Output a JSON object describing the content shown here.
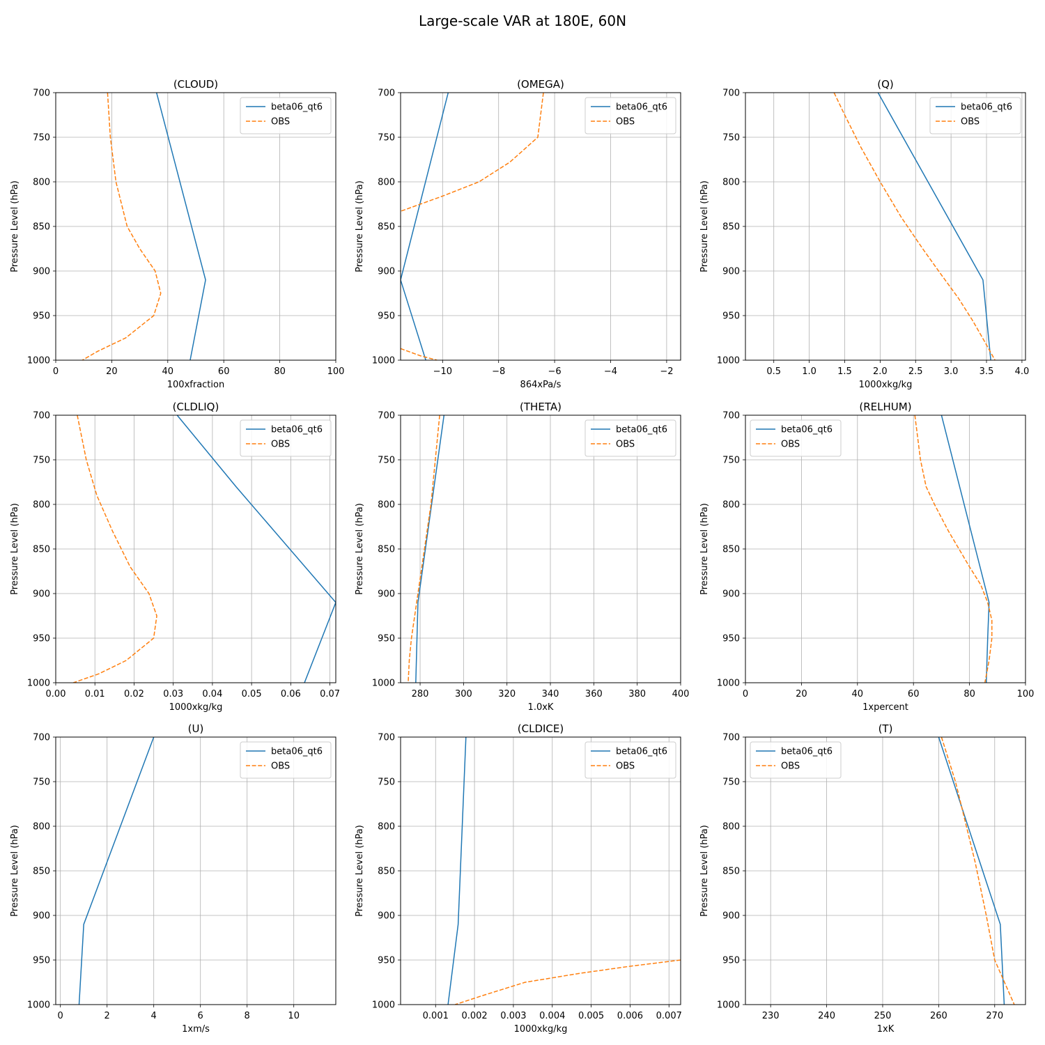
{
  "figure": {
    "title": "Large-scale VAR at 180E, 60N"
  },
  "chart_data": [
    {
      "type": "line",
      "title": "(CLOUD)",
      "xlabel": "100xfraction",
      "ylabel": "Pressure Level (hPa)",
      "xlim": [
        0,
        100
      ],
      "ylim": [
        1000,
        700
      ],
      "xticks": [
        0,
        20,
        40,
        60,
        80,
        100
      ],
      "xtick_labels": [
        "0",
        "20",
        "40",
        "60",
        "80",
        "100"
      ],
      "yticks": [
        700,
        750,
        800,
        850,
        900,
        950,
        1000
      ],
      "legend": "top-right",
      "grid": true,
      "series": [
        {
          "name": "beta06_qt6",
          "color": "#1f77b4",
          "dash": "solid",
          "x": [
            36,
            53.5,
            48
          ],
          "y": [
            700,
            910,
            1000
          ]
        },
        {
          "name": "OBS",
          "color": "#ff7f0e",
          "dash": "dashed",
          "x": [
            18.5,
            19,
            19.5,
            21.5,
            25.5,
            30,
            35.5,
            37.5,
            35,
            25,
            15,
            9.5
          ],
          "y": [
            700,
            725,
            750,
            800,
            850,
            875,
            900,
            925,
            950,
            975,
            990,
            1000
          ]
        }
      ]
    },
    {
      "type": "line",
      "title": "(OMEGA)",
      "xlabel": "864xPa/s",
      "ylabel": "Pressure Level (hPa)",
      "xlim": [
        -11.5,
        -1.5
      ],
      "ylim": [
        1000,
        700
      ],
      "xticks": [
        -10,
        -8,
        -6,
        -4,
        -2
      ],
      "xtick_labels": [
        "−10",
        "−8",
        "−6",
        "−4",
        "−2"
      ],
      "yticks": [
        700,
        750,
        800,
        850,
        900,
        950,
        1000
      ],
      "legend": "top-right",
      "grid": true,
      "series": [
        {
          "name": "beta06_qt6",
          "color": "#1f77b4",
          "dash": "solid",
          "x": [
            -9.8,
            -11.5,
            -10.6
          ],
          "y": [
            700,
            910,
            1000
          ]
        },
        {
          "name": "OBS",
          "color": "#ff7f0e",
          "dash": "dashed",
          "x": [
            -6.4,
            -6.6,
            -7.6,
            -8.7,
            -10.0,
            -11.5
          ],
          "y": [
            700,
            750,
            778,
            800,
            816,
            833
          ]
        },
        {
          "name": "OBS",
          "color": "#ff7f0e",
          "dash": "dashed",
          "x": [
            -11.5,
            -10.8,
            -10.2
          ],
          "y": [
            987,
            995,
            1000
          ]
        }
      ]
    },
    {
      "type": "line",
      "title": "(Q)",
      "xlabel": "1000xkg/kg",
      "ylabel": "Pressure Level (hPa)",
      "xlim": [
        0.1,
        4.05
      ],
      "ylim": [
        1000,
        700
      ],
      "xticks": [
        0.5,
        1.0,
        1.5,
        2.0,
        2.5,
        3.0,
        3.5,
        4.0
      ],
      "xtick_labels": [
        "0.5",
        "1.0",
        "1.5",
        "2.0",
        "2.5",
        "3.0",
        "3.5",
        "4.0"
      ],
      "yticks": [
        700,
        750,
        800,
        850,
        900,
        950,
        1000
      ],
      "legend": "top-right",
      "grid": true,
      "series": [
        {
          "name": "beta06_qt6",
          "color": "#1f77b4",
          "dash": "solid",
          "x": [
            1.97,
            3.45,
            3.56
          ],
          "y": [
            700,
            910,
            1000
          ]
        },
        {
          "name": "OBS",
          "color": "#ff7f0e",
          "dash": "dashed",
          "x": [
            1.35,
            1.5,
            1.72,
            2.0,
            2.3,
            2.6,
            2.87,
            3.1,
            3.3,
            3.48,
            3.62
          ],
          "y": [
            700,
            725,
            760,
            800,
            840,
            875,
            905,
            930,
            955,
            980,
            1000
          ]
        }
      ]
    },
    {
      "type": "line",
      "title": "(CLDLIQ)",
      "xlabel": "1000xkg/kg",
      "ylabel": "Pressure Level (hPa)",
      "xlim": [
        0,
        0.0715
      ],
      "ylim": [
        1000,
        700
      ],
      "xticks": [
        0,
        0.01,
        0.02,
        0.03,
        0.04,
        0.05,
        0.06,
        0.07
      ],
      "xtick_labels": [
        "0.00",
        "0.01",
        "0.02",
        "0.03",
        "0.04",
        "0.05",
        "0.06",
        "0.07"
      ],
      "yticks": [
        700,
        750,
        800,
        850,
        900,
        950,
        1000
      ],
      "legend": "top-right",
      "grid": true,
      "series": [
        {
          "name": "beta06_qt6",
          "color": "#1f77b4",
          "dash": "solid",
          "x": [
            0.031,
            0.046,
            0.0715,
            0.0635
          ],
          "y": [
            700,
            780,
            910,
            1000
          ]
        },
        {
          "name": "OBS",
          "color": "#ff7f0e",
          "dash": "dashed",
          "x": [
            0.0055,
            0.0078,
            0.0105,
            0.0145,
            0.019,
            0.0238,
            0.0258,
            0.025,
            0.018,
            0.011,
            0.0045
          ],
          "y": [
            700,
            750,
            790,
            830,
            870,
            900,
            925,
            950,
            975,
            990,
            1000
          ]
        }
      ]
    },
    {
      "type": "line",
      "title": "(THETA)",
      "xlabel": "1.0xK",
      "ylabel": "Pressure Level (hPa)",
      "xlim": [
        271,
        400
      ],
      "ylim": [
        1000,
        700
      ],
      "xticks": [
        280,
        300,
        320,
        340,
        360,
        380,
        400
      ],
      "xtick_labels": [
        "280",
        "300",
        "320",
        "340",
        "360",
        "380",
        "400"
      ],
      "yticks": [
        700,
        750,
        800,
        850,
        900,
        950,
        1000
      ],
      "legend": "top-right",
      "grid": true,
      "series": [
        {
          "name": "beta06_qt6",
          "color": "#1f77b4",
          "dash": "solid",
          "x": [
            291,
            279,
            278
          ],
          "y": [
            700,
            910,
            1000
          ]
        },
        {
          "name": "OBS",
          "color": "#ff7f0e",
          "dash": "dashed",
          "x": [
            289,
            285,
            282,
            279,
            276,
            275,
            274.5
          ],
          "y": [
            700,
            800,
            850,
            900,
            950,
            975,
            1000
          ]
        }
      ]
    },
    {
      "type": "line",
      "title": "(RELHUM)",
      "xlabel": "1xpercent",
      "ylabel": "Pressure Level (hPa)",
      "xlim": [
        0,
        100
      ],
      "ylim": [
        1000,
        700
      ],
      "xticks": [
        0,
        20,
        40,
        60,
        80,
        100
      ],
      "xtick_labels": [
        "0",
        "20",
        "40",
        "60",
        "80",
        "100"
      ],
      "yticks": [
        700,
        750,
        800,
        850,
        900,
        950,
        1000
      ],
      "legend": "top-left",
      "grid": true,
      "series": [
        {
          "name": "beta06_qt6",
          "color": "#1f77b4",
          "dash": "solid",
          "x": [
            70,
            87,
            86.5,
            86
          ],
          "y": [
            700,
            910,
            950,
            1000
          ]
        },
        {
          "name": "OBS",
          "color": "#ff7f0e",
          "dash": "dashed",
          "x": [
            60.5,
            62.5,
            64.5,
            67.5,
            72.5,
            80,
            84,
            86.5,
            88,
            88,
            87,
            85.5
          ],
          "y": [
            700,
            750,
            780,
            800,
            830,
            870,
            890,
            910,
            930,
            950,
            975,
            1000
          ]
        }
      ]
    },
    {
      "type": "line",
      "title": "(U)",
      "xlabel": "1xm/s",
      "ylabel": "Pressure Level (hPa)",
      "xlim": [
        -0.2,
        11.8
      ],
      "ylim": [
        1000,
        700
      ],
      "xticks": [
        0,
        2,
        4,
        6,
        8,
        10
      ],
      "xtick_labels": [
        "0",
        "2",
        "4",
        "6",
        "8",
        "10"
      ],
      "yticks": [
        700,
        750,
        800,
        850,
        900,
        950,
        1000
      ],
      "legend": "top-right",
      "grid": true,
      "series": [
        {
          "name": "beta06_qt6",
          "color": "#1f77b4",
          "dash": "solid",
          "x": [
            4,
            1,
            0.8
          ],
          "y": [
            700,
            910,
            1000
          ]
        },
        {
          "name": "OBS",
          "color": "#ff7f0e",
          "dash": "dashed",
          "x": [],
          "y": []
        }
      ]
    },
    {
      "type": "line",
      "title": "(CLDICE)",
      "xlabel": "1000xkg/kg",
      "ylabel": "Pressure Level (hPa)",
      "xlim": [
        0.0001,
        0.0073
      ],
      "ylim": [
        1000,
        700
      ],
      "xticks": [
        0.001,
        0.002,
        0.003,
        0.004,
        0.005,
        0.006,
        0.007
      ],
      "xtick_labels": [
        "0.001",
        "0.002",
        "0.003",
        "0.004",
        "0.005",
        "0.006",
        "0.007"
      ],
      "yticks": [
        700,
        750,
        800,
        850,
        900,
        950,
        1000
      ],
      "legend": "top-right",
      "grid": true,
      "series": [
        {
          "name": "beta06_qt6",
          "color": "#1f77b4",
          "dash": "solid",
          "x": [
            0.00178,
            0.00158,
            0.00132
          ],
          "y": [
            700,
            910,
            1000
          ]
        },
        {
          "name": "OBS",
          "color": "#ff7f0e",
          "dash": "dashed",
          "x": [
            0.0073,
            0.006,
            0.0047,
            0.0033,
            0.0022,
            0.0015
          ],
          "y": [
            950,
            957,
            965,
            975,
            990,
            1000
          ]
        }
      ]
    },
    {
      "type": "line",
      "title": "(T)",
      "xlabel": "1xK",
      "ylabel": "Pressure Level (hPa)",
      "xlim": [
        225.5,
        275.5
      ],
      "ylim": [
        1000,
        700
      ],
      "xticks": [
        230,
        240,
        250,
        260,
        270
      ],
      "xtick_labels": [
        "230",
        "240",
        "250",
        "260",
        "270"
      ],
      "yticks": [
        700,
        750,
        800,
        850,
        900,
        950,
        1000
      ],
      "legend": "top-left",
      "grid": true,
      "series": [
        {
          "name": "beta06_qt6",
          "color": "#1f77b4",
          "dash": "solid",
          "x": [
            260,
            271,
            271.7
          ],
          "y": [
            700,
            910,
            1000
          ]
        },
        {
          "name": "OBS",
          "color": "#ff7f0e",
          "dash": "dashed",
          "x": [
            260.5,
            263,
            266.5,
            268.5,
            270,
            273.5
          ],
          "y": [
            700,
            750,
            840,
            900,
            950,
            1000
          ]
        }
      ]
    }
  ]
}
